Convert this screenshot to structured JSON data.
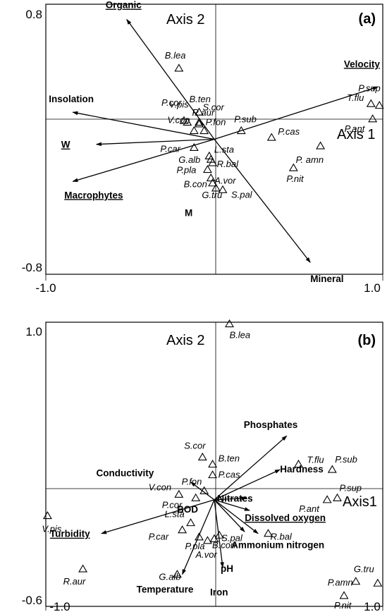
{
  "chart_data": [
    {
      "type": "scatter",
      "panel_label": "(a)",
      "axis_labels": {
        "axis1": "Axis 1",
        "axis2": "Axis 2"
      },
      "xlim": [
        -1.0,
        1.0
      ],
      "ylim": [
        -0.8,
        0.8
      ],
      "x_ticks": [
        "-1.0",
        "1.0"
      ],
      "y_ticks": [
        "0.8",
        "-0.8"
      ],
      "species": [
        {
          "label": "B.lea",
          "x": -0.21,
          "y": 0.42
        },
        {
          "label": "B.ten",
          "x": -0.09,
          "y": 0.16
        },
        {
          "label": "V.pis",
          "x": -0.16,
          "y": 0.1
        },
        {
          "label": "P.cor",
          "x": -0.18,
          "y": 0.11
        },
        {
          "label": "R.aur",
          "x": -0.09,
          "y": 0.09
        },
        {
          "label": "V.con",
          "x": -0.12,
          "y": 0.05
        },
        {
          "label": "S.cor",
          "x": -0.09,
          "y": 0.1
        },
        {
          "label": "P.fon",
          "x": -0.06,
          "y": 0.05
        },
        {
          "label": "P.sub",
          "x": 0.16,
          "y": 0.05
        },
        {
          "label": "P.car",
          "x": -0.12,
          "y": -0.05
        },
        {
          "label": "L.sta",
          "x": -0.03,
          "y": -0.1
        },
        {
          "label": "G.alb",
          "x": -0.02,
          "y": -0.12
        },
        {
          "label": "R.bal",
          "x": -0.01,
          "y": -0.14
        },
        {
          "label": "P.pla",
          "x": -0.04,
          "y": -0.18
        },
        {
          "label": "A.vor",
          "x": -0.02,
          "y": -0.23
        },
        {
          "label": "B.con",
          "x": -0.01,
          "y": -0.26
        },
        {
          "label": "G.tru",
          "x": 0.01,
          "y": -0.29
        },
        {
          "label": "S.pal",
          "x": 0.05,
          "y": -0.3
        },
        {
          "label": "P.cas",
          "x": 0.34,
          "y": 0.01
        },
        {
          "label": "P.nit",
          "x": 0.47,
          "y": -0.17
        },
        {
          "label": "P. amn",
          "x": 0.63,
          "y": -0.04
        },
        {
          "label": "T.flu",
          "x": 0.93,
          "y": 0.21
        },
        {
          "label": "P.sup",
          "x": 0.98,
          "y": 0.2
        },
        {
          "label": "P.ant",
          "x": 0.94,
          "y": 0.12
        }
      ],
      "vectors": [
        {
          "label": "Organic",
          "underline": true,
          "x": -0.52,
          "y": 0.71
        },
        {
          "label": "Velocity",
          "underline": true,
          "x": 0.97,
          "y": 0.31
        },
        {
          "label": "Insolation",
          "underline": false,
          "x": -0.84,
          "y": 0.16
        },
        {
          "label": "W",
          "underline": true,
          "x": -0.7,
          "y": -0.03
        },
        {
          "label": "Macrophytes",
          "underline": true,
          "x": -0.84,
          "y": -0.25
        },
        {
          "label": "M",
          "underline": false,
          "x": 0.0,
          "y": 0.0
        },
        {
          "label": "Mineral",
          "underline": false,
          "x": 0.57,
          "y": -0.73
        }
      ]
    },
    {
      "type": "scatter",
      "panel_label": "(b)",
      "axis_labels": {
        "axis1": "Axis1",
        "axis2": "Axis 2"
      },
      "xlim": [
        -1.0,
        1.0
      ],
      "ylim": [
        -0.6,
        1.0
      ],
      "x_ticks": [
        "-1.0",
        "1.0"
      ],
      "y_ticks": [
        "1.0",
        "-0.6"
      ],
      "species": [
        {
          "label": "B.lea",
          "x": 0.09,
          "y": 0.99
        },
        {
          "label": "S.cor",
          "x": -0.07,
          "y": 0.24
        },
        {
          "label": "B.ten",
          "x": -0.01,
          "y": 0.2
        },
        {
          "label": "P.cas",
          "x": -0.01,
          "y": 0.14
        },
        {
          "label": "T.flu",
          "x": 0.5,
          "y": 0.2
        },
        {
          "label": "P.sub",
          "x": 0.7,
          "y": 0.17
        },
        {
          "label": "P.sup",
          "x": 0.73,
          "y": 0.01
        },
        {
          "label": "P.ant",
          "x": 0.67,
          "y": 0.0
        },
        {
          "label": "P.fon",
          "x": -0.06,
          "y": 0.05
        },
        {
          "label": "V.con",
          "x": -0.21,
          "y": 0.03
        },
        {
          "label": "P.cor",
          "x": -0.11,
          "y": 0.01
        },
        {
          "label": "L.sta",
          "x": -0.14,
          "y": -0.13
        },
        {
          "label": "P.car",
          "x": -0.19,
          "y": -0.17
        },
        {
          "label": "P.pla",
          "x": -0.09,
          "y": -0.21
        },
        {
          "label": "S.pal",
          "x": 0.03,
          "y": -0.2
        },
        {
          "label": "B.con",
          "x": 0.0,
          "y": -0.22
        },
        {
          "label": "A.vor",
          "x": -0.04,
          "y": -0.23
        },
        {
          "label": "R.bal",
          "x": 0.32,
          "y": -0.19
        },
        {
          "label": "V.pis",
          "x": -0.99,
          "y": -0.09
        },
        {
          "label": "R.aur",
          "x": -0.78,
          "y": -0.39
        },
        {
          "label": "G.alb",
          "x": -0.22,
          "y": -0.42
        },
        {
          "label": "G.tru",
          "x": 0.97,
          "y": -0.47
        },
        {
          "label": "P.amn",
          "x": 0.84,
          "y": -0.46
        },
        {
          "label": "P.nit",
          "x": 0.77,
          "y": -0.54
        }
      ],
      "vectors": [
        {
          "label": "Phosphates",
          "underline": false,
          "x": 0.43,
          "y": 0.36
        },
        {
          "label": "Hardness",
          "underline": false,
          "x": 0.39,
          "y": 0.17
        },
        {
          "label": "Conductivity",
          "underline": false,
          "x": -0.14,
          "y": 0.1
        },
        {
          "label": "Nitrates",
          "underline": false,
          "x": 0.19,
          "y": 0.01
        },
        {
          "label": "BOD",
          "underline": false,
          "x": 0.0,
          "y": 0.0
        },
        {
          "label": "Dissolved oxygen",
          "underline": true,
          "x": 0.21,
          "y": -0.06
        },
        {
          "label": "Ammonium nitrogen",
          "underline": false,
          "x": 0.26,
          "y": -0.19
        },
        {
          "label": "pH",
          "underline": false,
          "x": 0.18,
          "y": -0.18
        },
        {
          "label": "Turbidity",
          "underline": true,
          "x": -0.67,
          "y": -0.19
        },
        {
          "label": "Iron",
          "underline": false,
          "x": 0.05,
          "y": -0.38
        },
        {
          "label": "Temperature",
          "underline": false,
          "x": -0.19,
          "y": -0.42
        }
      ]
    }
  ]
}
